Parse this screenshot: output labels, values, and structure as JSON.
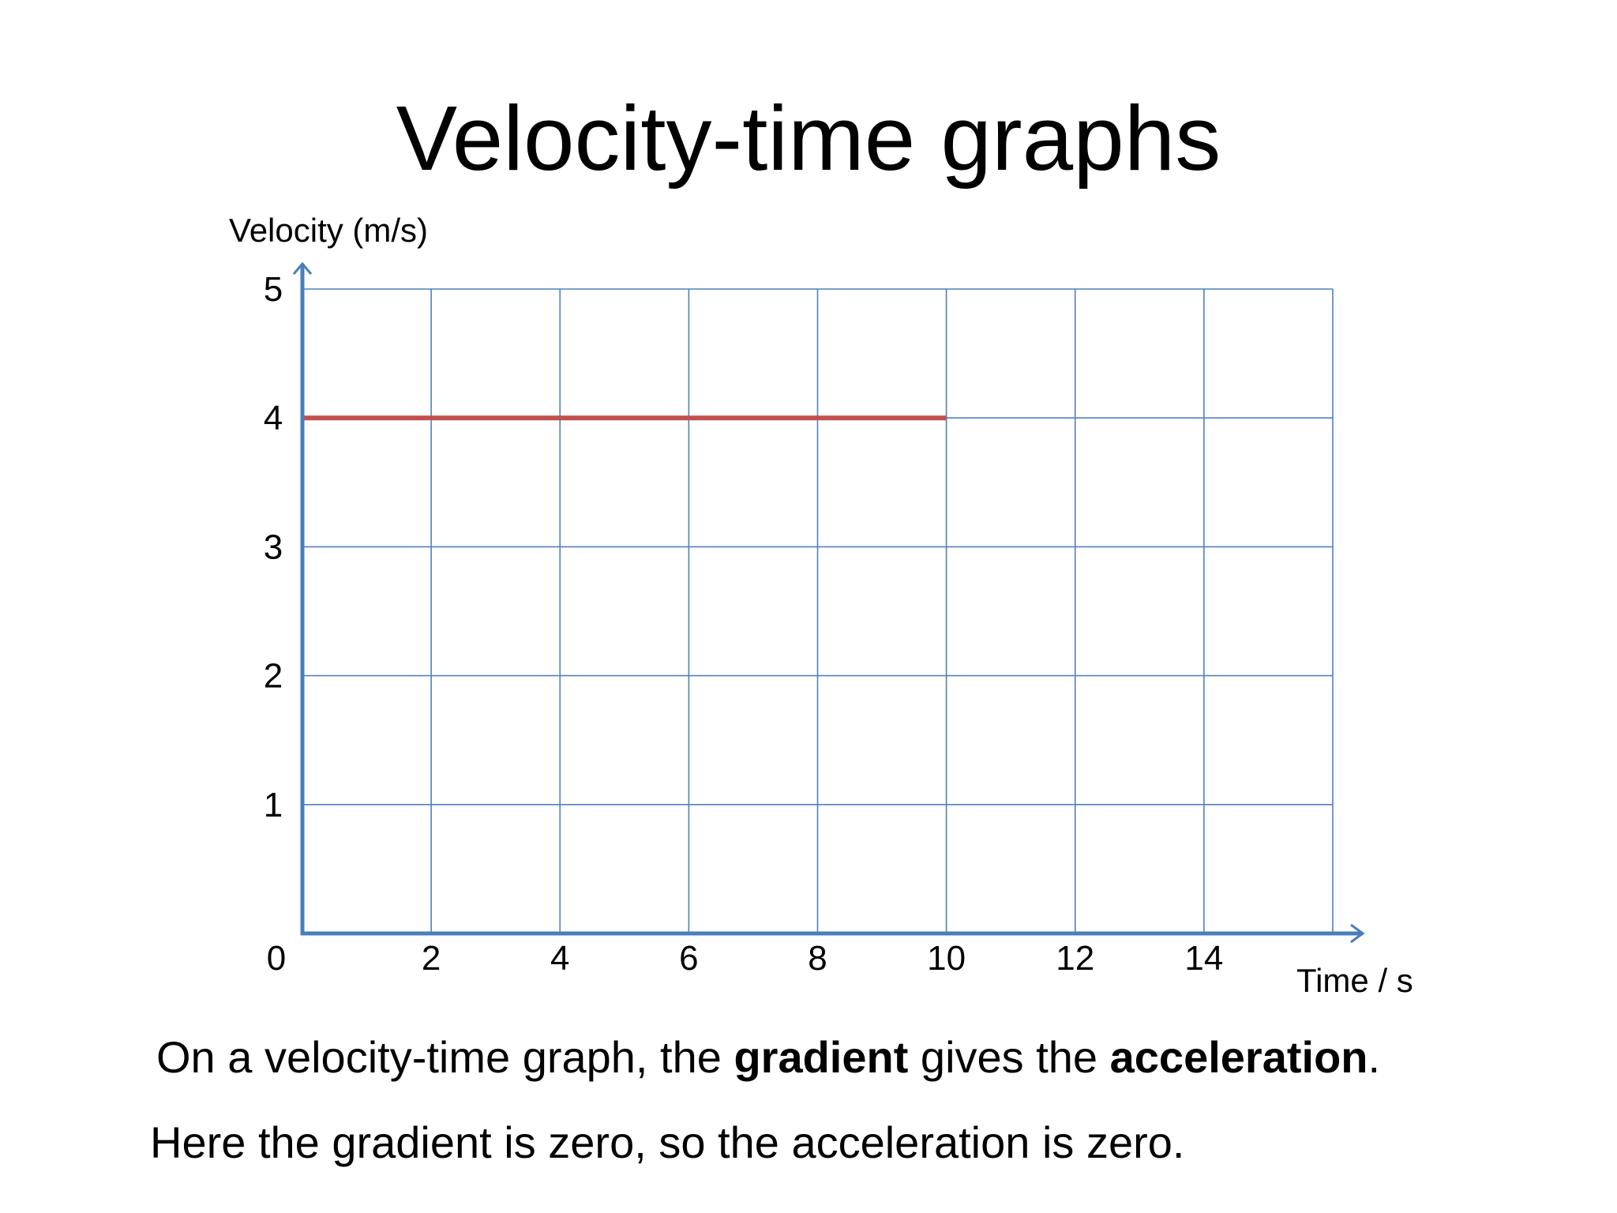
{
  "slide": {
    "title": "Velocity-time graphs",
    "caption_1": {
      "part_1": "On a velocity-time graph, the ",
      "bold_1": "gradient",
      "part_2": " gives the ",
      "bold_2": "acceleration",
      "part_3": "."
    },
    "caption_2": "Here the gradient is zero, so the acceleration is zero."
  },
  "colors": {
    "grid": "#4f81bd",
    "axis": "#4a7ebb",
    "line": "#c0504d",
    "text": "#000000"
  },
  "chart_data": {
    "type": "line",
    "title": "",
    "xlabel": "Time / s",
    "ylabel": "Velocity (m/s)",
    "xlim": [
      0,
      16
    ],
    "ylim": [
      0,
      5
    ],
    "x_ticks": [
      2,
      4,
      6,
      8,
      10,
      12,
      14
    ],
    "y_ticks": [
      1,
      2,
      3,
      4,
      5
    ],
    "origin_label": "0",
    "grid": true,
    "series": [
      {
        "x": [
          0,
          10
        ],
        "y": [
          4,
          4
        ]
      }
    ]
  }
}
